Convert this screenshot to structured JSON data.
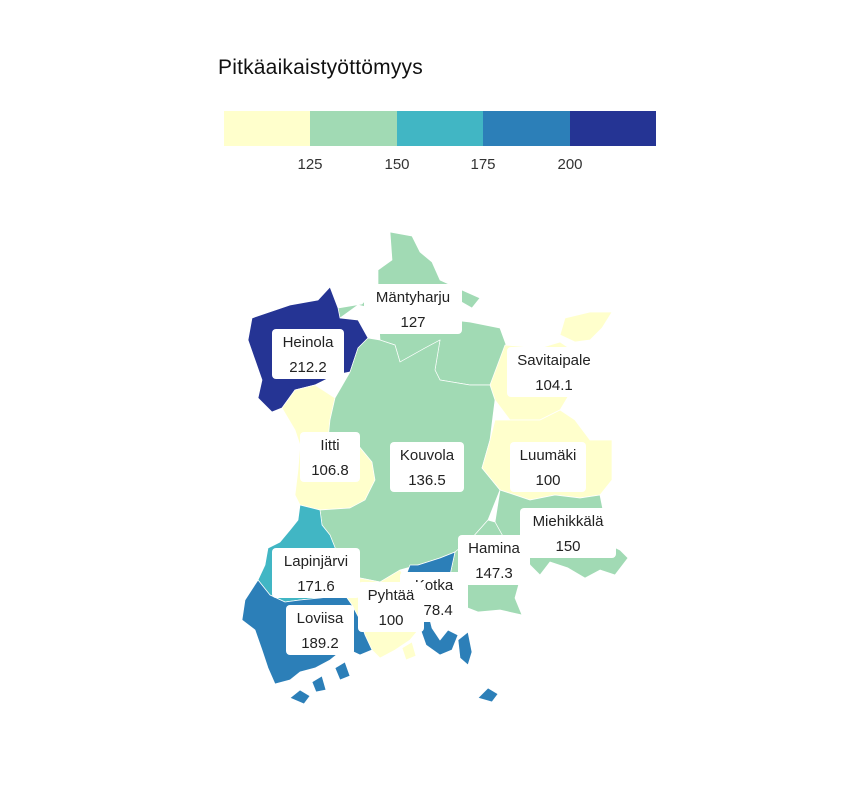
{
  "legend": {
    "title": "Pitkäaikaistyöttömyys",
    "breaks": [
      "125",
      "150",
      "175",
      "200"
    ],
    "colors": [
      "#ffffcc",
      "#a1dab4",
      "#41b6c4",
      "#2c7fb8",
      "#253494"
    ]
  },
  "municipalities": [
    {
      "name": "Mäntyharju",
      "value": "127",
      "color": "#a1dab4"
    },
    {
      "name": "Heinola",
      "value": "212.2",
      "color": "#253494"
    },
    {
      "name": "Savitaipale",
      "value": "104.1",
      "color": "#ffffcc"
    },
    {
      "name": "Iitti",
      "value": "106.8",
      "color": "#ffffcc"
    },
    {
      "name": "Kouvola",
      "value": "136.5",
      "color": "#a1dab4"
    },
    {
      "name": "Luumäki",
      "value": "100",
      "color": "#ffffcc"
    },
    {
      "name": "Miehikkälä",
      "value": "150",
      "color": "#a1dab4"
    },
    {
      "name": "Hamina",
      "value": "147.3",
      "color": "#a1dab4"
    },
    {
      "name": "Lapinjärvi",
      "value": "171.6",
      "color": "#41b6c4"
    },
    {
      "name": "Kotka",
      "value": "178.4",
      "color": "#2c7fb8"
    },
    {
      "name": "Pyhtää",
      "value": "100",
      "color": "#ffffcc"
    },
    {
      "name": "Loviisa",
      "value": "189.2",
      "color": "#2c7fb8"
    }
  ]
}
